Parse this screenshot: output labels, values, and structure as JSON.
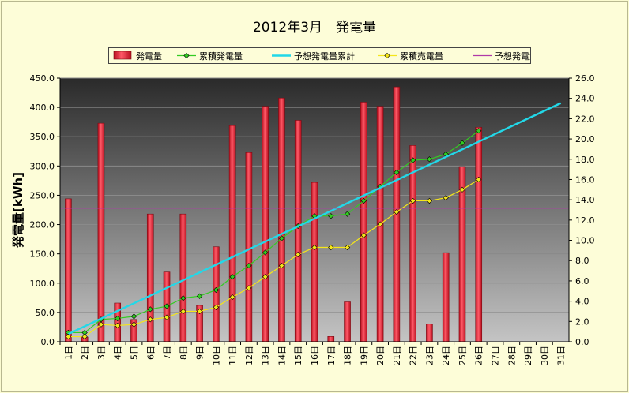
{
  "chart_data": {
    "type": "bar",
    "title": "2012年3月　発電量",
    "ylabel": "発電量[kWh]",
    "y_left_range": [
      0,
      450
    ],
    "y_left_ticks": [
      "0.0",
      "50.0",
      "100.0",
      "150.0",
      "200.0",
      "250.0",
      "300.0",
      "350.0",
      "400.0",
      "450.0"
    ],
    "y_right_range": [
      0,
      26
    ],
    "y_right_ticks": [
      "0.0",
      "2.0",
      "4.0",
      "6.0",
      "8.0",
      "10.0",
      "12.0",
      "14.0",
      "16.0",
      "18.0",
      "20.0",
      "22.0",
      "24.0",
      "26.0"
    ],
    "categories": [
      "1日",
      "2日",
      "3日",
      "4日",
      "5日",
      "6日",
      "7日",
      "8日",
      "9日",
      "10日",
      "11日",
      "12日",
      "13日",
      "14日",
      "15日",
      "16日",
      "17日",
      "18日",
      "19日",
      "20日",
      "21日",
      "22日",
      "23日",
      "24日",
      "25日",
      "26日",
      "27日",
      "28日",
      "29日",
      "30日",
      "31日"
    ],
    "legend_position": "top",
    "grid": true,
    "series": [
      {
        "name": "発電量",
        "kind": "bar",
        "axis": "left",
        "color": "#e8323c",
        "values": [
          244,
          8,
          373,
          66,
          38,
          218,
          119,
          218,
          62,
          162,
          369,
          323,
          402,
          416,
          378,
          272,
          9,
          68,
          409,
          402,
          435,
          335,
          30,
          152,
          299,
          366,
          null,
          null,
          null,
          null,
          null
        ]
      },
      {
        "name": "累積発電量",
        "kind": "line",
        "axis": "right",
        "color": "#33cc22",
        "marker": "diamond",
        "values": [
          0.9,
          0.9,
          2.2,
          2.3,
          2.5,
          3.2,
          3.5,
          4.3,
          4.5,
          5.1,
          6.4,
          7.5,
          8.8,
          10.2,
          11.4,
          12.4,
          12.4,
          12.6,
          13.9,
          15.3,
          16.7,
          17.9,
          18.0,
          18.5,
          19.6,
          20.8,
          null,
          null,
          null,
          null,
          null
        ]
      },
      {
        "name": "予想発電量累計",
        "kind": "line",
        "axis": "right",
        "color": "#22d8e8",
        "values": [
          0.76,
          1.52,
          2.28,
          3.04,
          3.79,
          4.55,
          5.31,
          6.07,
          6.83,
          7.59,
          8.35,
          9.11,
          9.87,
          10.63,
          11.38,
          12.14,
          12.9,
          13.66,
          14.42,
          15.18,
          15.94,
          16.7,
          17.46,
          18.22,
          18.97,
          19.73,
          20.49,
          21.25,
          22.01,
          22.77,
          23.53
        ]
      },
      {
        "name": "累積売電量",
        "kind": "line",
        "axis": "right",
        "color": "#f5e61a",
        "marker": "diamond",
        "values": [
          0.5,
          0.5,
          1.7,
          1.6,
          1.7,
          2.2,
          2.4,
          3.0,
          3.0,
          3.4,
          4.4,
          5.3,
          6.4,
          7.5,
          8.6,
          9.3,
          9.3,
          9.3,
          10.5,
          11.6,
          12.8,
          13.9,
          13.9,
          14.2,
          15.0,
          16.0,
          null,
          null,
          null,
          null,
          null
        ]
      },
      {
        "name": "予想発電量日割",
        "kind": "hline",
        "axis": "left",
        "color": "#b03aa8",
        "value": 228
      }
    ]
  }
}
